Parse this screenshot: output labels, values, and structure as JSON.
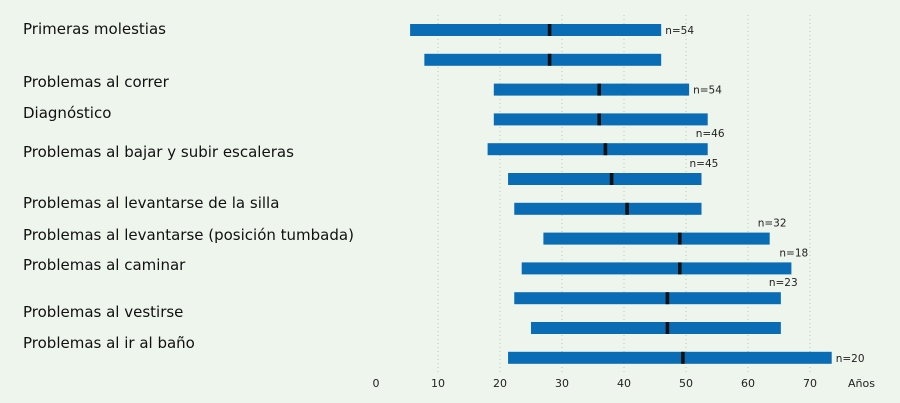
{
  "chart_data": {
    "type": "range-bar",
    "xlabel": "Años",
    "xlim": [
      0,
      75
    ],
    "xticks": [
      0,
      10,
      20,
      30,
      40,
      50,
      60,
      70
    ],
    "grid": true,
    "bar_color": "#0a6cb4",
    "median_color": "#111111",
    "labels": [
      {
        "text": "Primeras molestias"
      },
      {
        "text": "Problemas al correr"
      },
      {
        "text": "Diagnóstico"
      },
      {
        "text": "Problemas al bajar y subir escaleras"
      },
      {
        "text": "Problemas al levantarse de la silla"
      },
      {
        "text": "Problemas al levantarse (posición tumbada)"
      },
      {
        "text": "Problemas al caminar"
      },
      {
        "text": "Problemas al vestirse"
      },
      {
        "text": "Problemas al ir al baño"
      }
    ],
    "bars": [
      {
        "start": 5.5,
        "end": 46,
        "median": 28,
        "n": "n=54"
      },
      {
        "start": 7.8,
        "end": 46,
        "median": 28,
        "n": ""
      },
      {
        "start": 19,
        "end": 50.5,
        "median": 36,
        "n": "n=54"
      },
      {
        "start": 19,
        "end": 53.5,
        "median": 36,
        "n": ""
      },
      {
        "start": 18,
        "end": 53.5,
        "median": 37,
        "n": "n=46"
      },
      {
        "start": 21.3,
        "end": 52.5,
        "median": 38,
        "n": "n=45"
      },
      {
        "start": 22.3,
        "end": 52.5,
        "median": 40.5,
        "n": ""
      },
      {
        "start": 27,
        "end": 63.5,
        "median": 49,
        "n": "n=32"
      },
      {
        "start": 23.5,
        "end": 67,
        "median": 49,
        "n": "n=18"
      },
      {
        "start": 22.3,
        "end": 65.3,
        "median": 47,
        "n": "n=23"
      },
      {
        "start": 25,
        "end": 65.3,
        "median": 47,
        "n": ""
      },
      {
        "start": 21.3,
        "end": 73.5,
        "median": 49.5,
        "n": "n=20"
      }
    ]
  }
}
